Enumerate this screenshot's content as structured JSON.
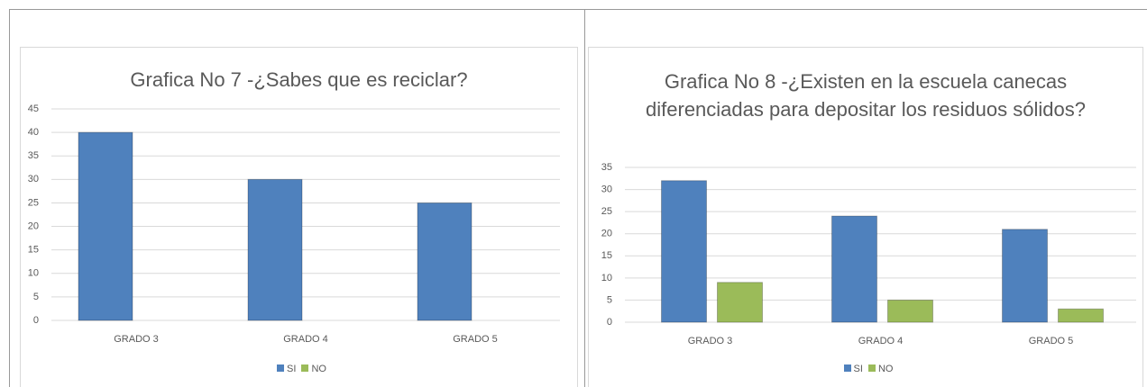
{
  "chart_data": [
    {
      "type": "bar",
      "title": "Grafica No 7 -¿Sabes que es reciclar?",
      "categories": [
        "GRADO 3",
        "GRADO 4",
        "GRADO 5"
      ],
      "series": [
        {
          "name": "SI",
          "color": "#4f81bd",
          "values": [
            40,
            30,
            25
          ]
        },
        {
          "name": "NO",
          "color": "#9bbb59",
          "values": [
            0,
            0,
            0
          ]
        }
      ],
      "ylim": [
        0,
        45
      ],
      "yticks": [
        0,
        5,
        10,
        15,
        20,
        25,
        30,
        35,
        40,
        45
      ],
      "grid": true,
      "legend": "bottom"
    },
    {
      "type": "bar",
      "title": "Grafica No 8 -¿Existen en la escuela canecas diferenciadas para depositar los residuos sólidos?",
      "categories": [
        "GRADO 3",
        "GRADO 4",
        "GRADO 5"
      ],
      "series": [
        {
          "name": "SI",
          "color": "#4f81bd",
          "values": [
            32,
            24,
            21
          ]
        },
        {
          "name": "NO",
          "color": "#9bbb59",
          "values": [
            9,
            5,
            3
          ]
        }
      ],
      "ylim": [
        0,
        35
      ],
      "yticks": [
        0,
        5,
        10,
        15,
        20,
        25,
        30,
        35
      ],
      "grid": true,
      "legend": "bottom"
    }
  ]
}
